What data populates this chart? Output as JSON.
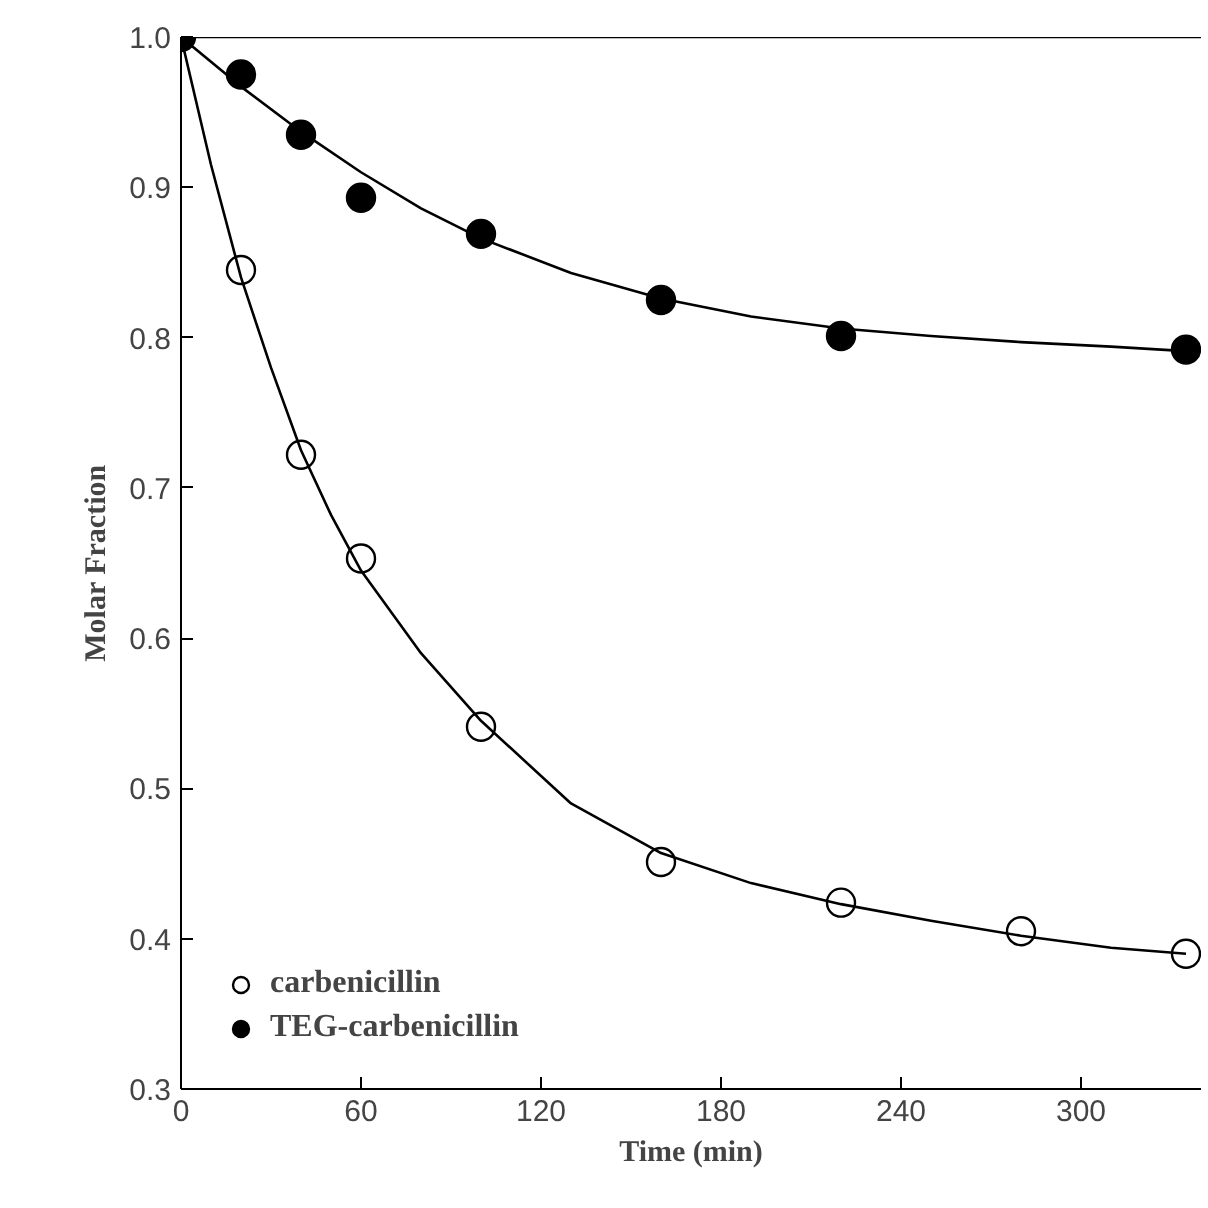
{
  "chart_data": {
    "type": "scatter",
    "xlabel": "Time (min)",
    "ylabel": "Molar Fraction",
    "xlim": [
      0,
      340
    ],
    "ylim": [
      0.3,
      1.0
    ],
    "xticks": [
      0,
      60,
      120,
      180,
      240,
      300
    ],
    "yticks": [
      {
        "value": 0.3,
        "label": "0.3"
      },
      {
        "value": 0.4,
        "label": "0.4"
      },
      {
        "value": 0.5,
        "label": "0.5"
      },
      {
        "value": 0.6,
        "label": "0.6"
      },
      {
        "value": 0.7,
        "label": "0.7"
      },
      {
        "value": 0.8,
        "label": "0.8"
      },
      {
        "value": 0.9,
        "label": "0.9"
      },
      {
        "value": 1.0,
        "label": "1.0"
      }
    ],
    "grid": false,
    "legend": "bottom left",
    "series": [
      {
        "name": "carbenicillin",
        "color": "#ffffff",
        "marker": "circle",
        "x": [
          20,
          40,
          60,
          100,
          160,
          220,
          280,
          335
        ],
        "values": [
          0.845,
          0.722,
          0.653,
          0.541,
          0.451,
          0.424,
          0.405,
          0.39
        ]
      },
      {
        "name": "TEG-carbenicillin",
        "color": "#000000",
        "marker": "circle",
        "x": [
          0,
          20,
          40,
          60,
          100,
          160,
          220,
          335
        ],
        "values": [
          1.0,
          0.975,
          0.935,
          0.893,
          0.869,
          0.825,
          0.801,
          0.792
        ]
      },
      {
        "type": "line",
        "color": "#000000",
        "marker": "none",
        "x": [
          0,
          10,
          20,
          30,
          40,
          50,
          60,
          80,
          100,
          130,
          160,
          190,
          220,
          250,
          280,
          310,
          335
        ],
        "values": [
          1.0,
          0.915,
          0.84,
          0.78,
          0.725,
          0.682,
          0.645,
          0.59,
          0.545,
          0.49,
          0.457,
          0.437,
          0.423,
          0.412,
          0.402,
          0.394,
          0.39
        ]
      },
      {
        "type": "line",
        "color": "#000000",
        "marker": "none",
        "x": [
          0,
          20,
          40,
          60,
          80,
          100,
          130,
          160,
          190,
          220,
          250,
          280,
          310,
          335
        ],
        "values": [
          1.0,
          0.967,
          0.937,
          0.91,
          0.886,
          0.866,
          0.843,
          0.826,
          0.814,
          0.806,
          0.801,
          0.797,
          0.794,
          0.791
        ]
      }
    ]
  }
}
